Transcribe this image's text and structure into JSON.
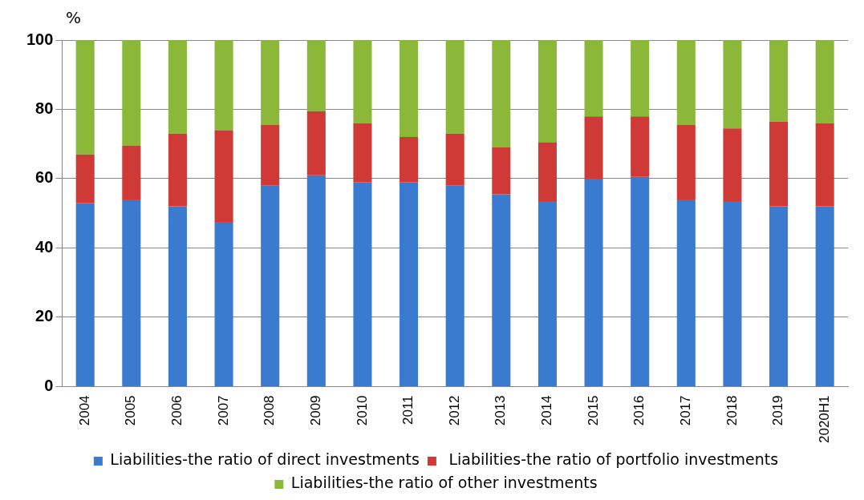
{
  "chart_data": {
    "type": "bar",
    "stacked": true,
    "ylabel": "%",
    "categories": [
      "2004",
      "2005",
      "2006",
      "2007",
      "2008",
      "2009",
      "2010",
      "2011",
      "2012",
      "2013",
      "2014",
      "2015",
      "2016",
      "2017",
      "2018",
      "2019",
      "2020H1"
    ],
    "series": [
      {
        "name": "Liabilities-the ratio of direct investments",
        "color": "#3a7bd0",
        "values": [
          53,
          54,
          52,
          47.5,
          58,
          61,
          59,
          59,
          58,
          55.5,
          53.5,
          60,
          60.5,
          54,
          53.5,
          52,
          52
        ]
      },
      {
        "name": " Liabilities-the ratio of portfolio investments",
        "color": "#d03a36",
        "values": [
          14,
          15.5,
          21,
          26.5,
          17.5,
          18.5,
          17,
          13,
          15,
          13.5,
          17,
          18,
          17.5,
          21.5,
          21,
          24.5,
          24
        ]
      },
      {
        "name": "Liabilities-the ratio of other investments",
        "color": "#8cb83a",
        "values": [
          33,
          30.5,
          27,
          26,
          24.5,
          20.5,
          24,
          28,
          27,
          31,
          29.5,
          22,
          22,
          24.5,
          25.5,
          23.5,
          24
        ]
      }
    ],
    "ylim": [
      0,
      100
    ],
    "yticks": [
      0,
      20,
      40,
      60,
      80,
      100
    ],
    "grid": "y",
    "legend": "bottom"
  }
}
